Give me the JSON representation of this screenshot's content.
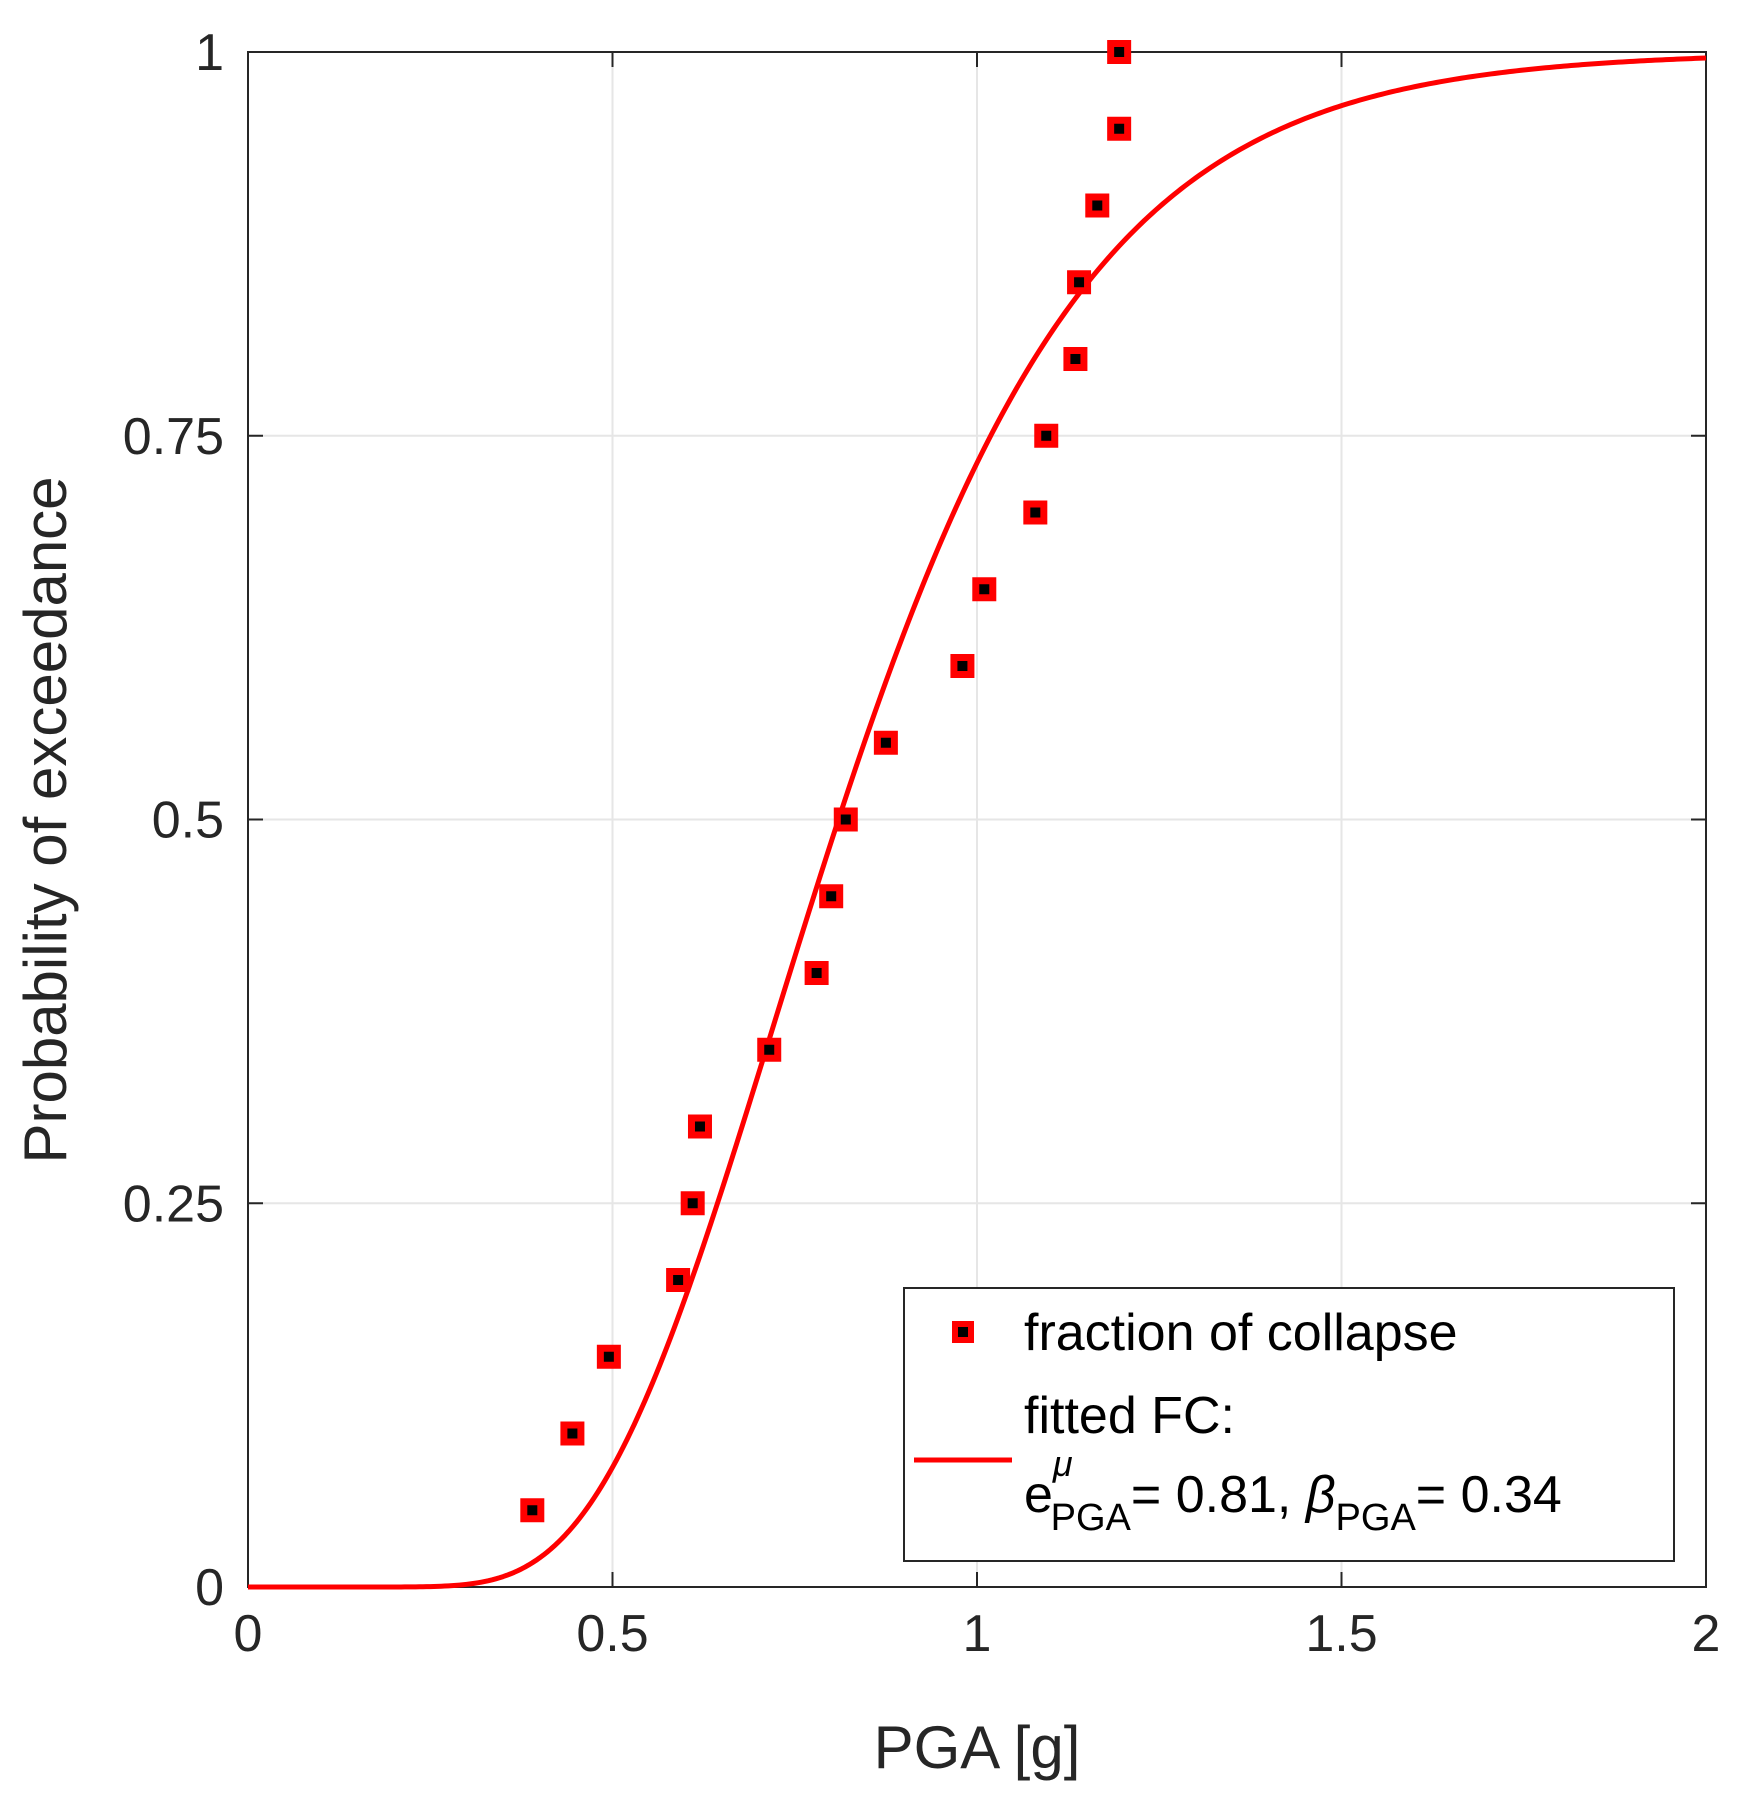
{
  "chart_data": {
    "type": "scatter",
    "xlabel": "PGA [g]",
    "ylabel": "Probability of exceedance",
    "xlim": [
      0,
      2
    ],
    "ylim": [
      0,
      1
    ],
    "grid": true,
    "x_ticks": [
      0,
      0.5,
      1,
      1.5,
      2
    ],
    "x_tick_labels": [
      "0",
      "0.5",
      "1",
      "1.5",
      "2"
    ],
    "y_ticks": [
      0,
      0.25,
      0.5,
      0.75,
      1
    ],
    "y_tick_labels": [
      "0",
      "0.25",
      "0.5",
      "0.75",
      "1"
    ],
    "series": [
      {
        "name": "fraction of collapse",
        "kind": "scatter",
        "marker": "square",
        "color": "#ff0000",
        "inner_color": "#000000",
        "x": [
          0.39,
          0.445,
          0.495,
          0.59,
          0.61,
          0.62,
          0.715,
          0.78,
          0.8,
          0.82,
          0.875,
          0.98,
          1.01,
          1.08,
          1.095,
          1.135,
          1.14,
          1.165,
          1.195,
          1.195
        ],
        "y": [
          0.05,
          0.1,
          0.15,
          0.2,
          0.25,
          0.3,
          0.35,
          0.4,
          0.45,
          0.5,
          0.55,
          0.6,
          0.65,
          0.7,
          0.75,
          0.8,
          0.85,
          0.9,
          0.95,
          1.0
        ]
      },
      {
        "name": "fitted FC",
        "kind": "line",
        "color": "#ff0000",
        "model": "lognormal CDF",
        "median": 0.81,
        "beta": 0.34
      }
    ],
    "legend": {
      "position": "bottom-right",
      "entries": [
        {
          "label": "fraction of collapse"
        },
        {
          "line1": "fitted FC:",
          "e_base": "e",
          "e_sup": "μ",
          "e_sub": "PGA",
          "e_value": "= 0.81, ",
          "beta_symbol": "β",
          "beta_sub": "PGA",
          "beta_value": "= 0.34"
        }
      ]
    }
  }
}
